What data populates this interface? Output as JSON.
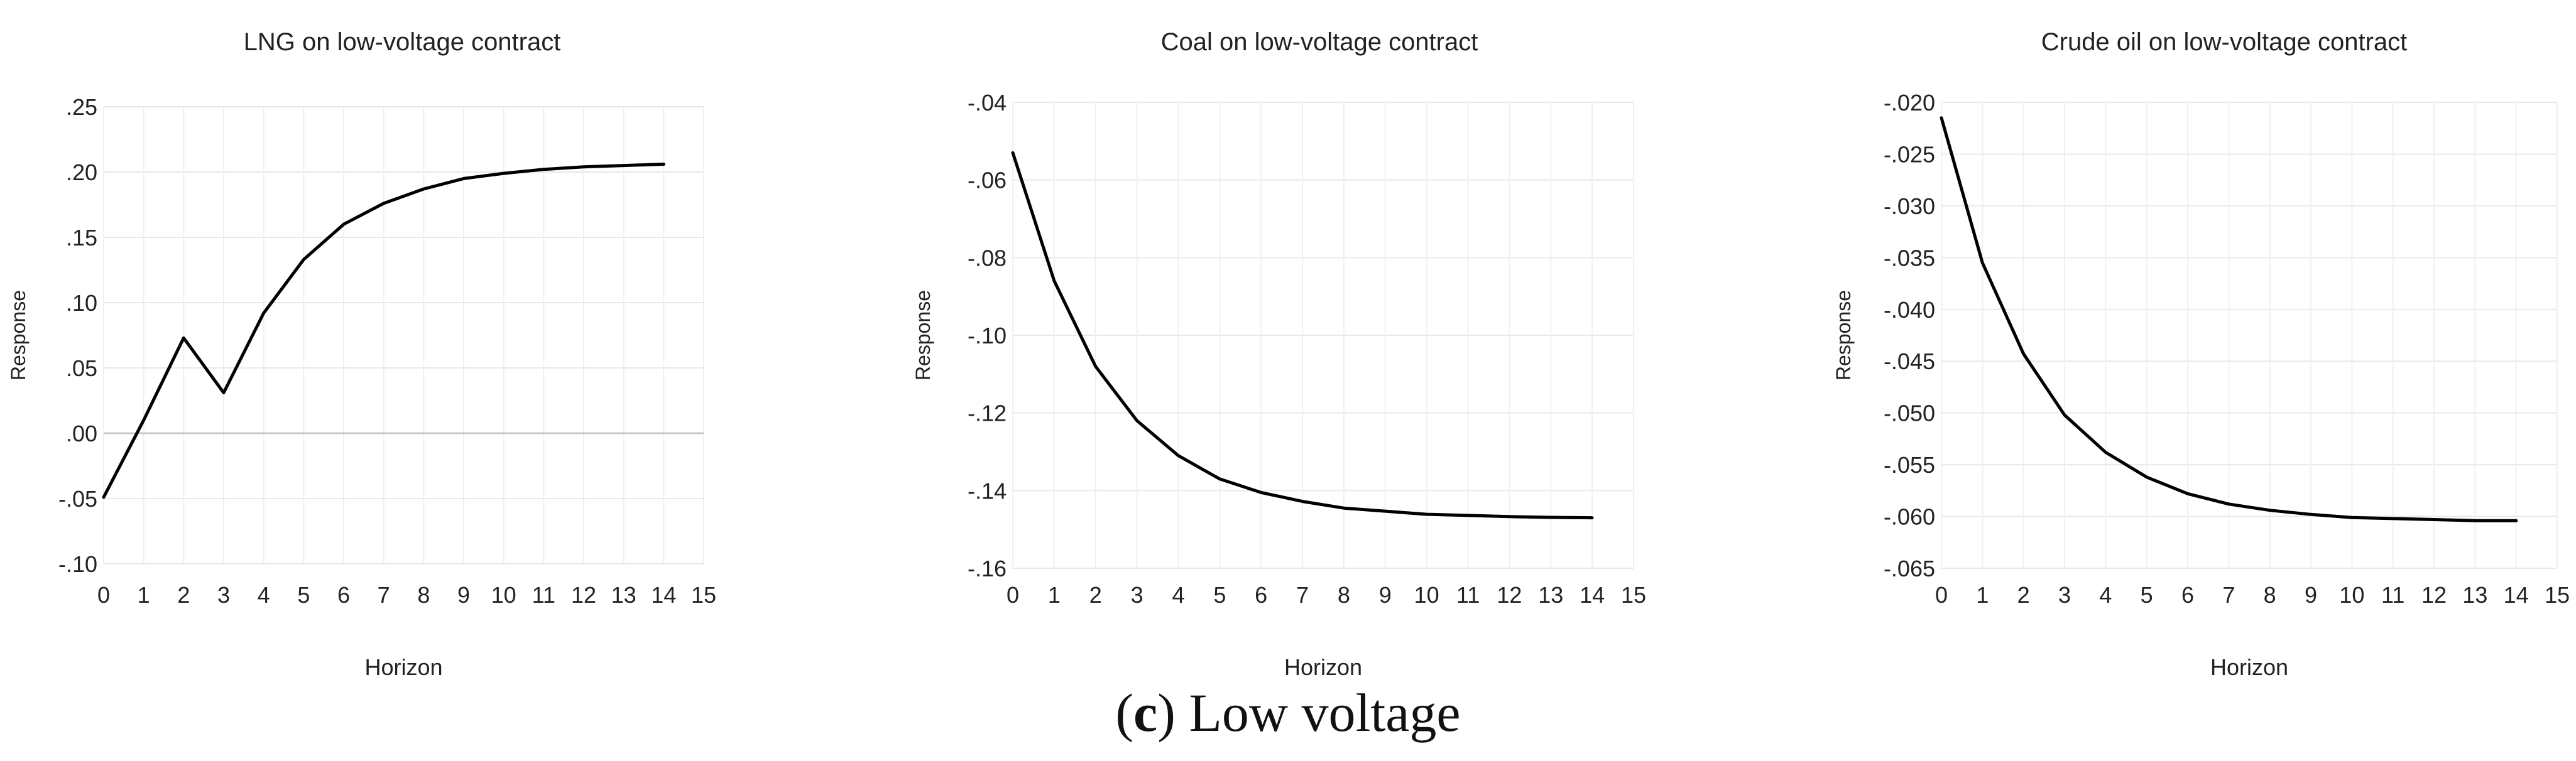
{
  "chart_data": [
    {
      "type": "line",
      "title": "LNG on low-voltage contract",
      "xlabel": "Horizon",
      "ylabel": "Response",
      "x": [
        0,
        1,
        2,
        3,
        4,
        5,
        6,
        7,
        8,
        9,
        10,
        11,
        12,
        13,
        14
      ],
      "series": [
        {
          "name": "LNG",
          "values": [
            -0.049,
            0.01,
            0.073,
            0.031,
            0.092,
            0.133,
            0.16,
            0.176,
            0.187,
            0.195,
            0.199,
            0.202,
            0.204,
            0.205,
            0.206
          ]
        }
      ],
      "xlim": [
        0,
        15
      ],
      "ylim": [
        -0.1,
        0.25
      ],
      "xticks": [
        0,
        1,
        2,
        3,
        4,
        5,
        6,
        7,
        8,
        9,
        10,
        11,
        12,
        13,
        14,
        15
      ],
      "yticks": [
        -0.1,
        -0.05,
        0.0,
        0.05,
        0.1,
        0.15,
        0.2,
        0.25
      ],
      "yticklabels": [
        "-.10",
        "-.05",
        ".00",
        ".05",
        ".10",
        ".15",
        ".20",
        ".25"
      ],
      "zero_line": true,
      "grid": true,
      "color": "#000000"
    },
    {
      "type": "line",
      "title": "Coal on low-voltage contract",
      "xlabel": "Horizon",
      "ylabel": "Response",
      "x": [
        0,
        1,
        2,
        3,
        4,
        5,
        6,
        7,
        8,
        9,
        10,
        11,
        12,
        13,
        14
      ],
      "series": [
        {
          "name": "Coal",
          "values": [
            -0.053,
            -0.086,
            -0.108,
            -0.122,
            -0.131,
            -0.137,
            -0.1405,
            -0.1428,
            -0.1445,
            -0.1453,
            -0.1461,
            -0.1464,
            -0.1467,
            -0.1469,
            -0.147
          ]
        }
      ],
      "xlim": [
        0,
        15
      ],
      "ylim": [
        -0.16,
        -0.04
      ],
      "xticks": [
        0,
        1,
        2,
        3,
        4,
        5,
        6,
        7,
        8,
        9,
        10,
        11,
        12,
        13,
        14,
        15
      ],
      "yticks": [
        -0.16,
        -0.14,
        -0.12,
        -0.1,
        -0.08,
        -0.06,
        -0.04
      ],
      "yticklabels": [
        "-.16",
        "-.14",
        "-.12",
        "-.10",
        "-.08",
        "-.06",
        "-.04"
      ],
      "zero_line": false,
      "grid": true,
      "color": "#000000"
    },
    {
      "type": "line",
      "title": "Crude oil on low-voltage contract",
      "xlabel": "Horizon",
      "ylabel": "Response",
      "x": [
        0,
        1,
        2,
        3,
        4,
        5,
        6,
        7,
        8,
        9,
        10,
        11,
        12,
        13,
        14
      ],
      "series": [
        {
          "name": "Crude oil",
          "values": [
            -0.0215,
            -0.0355,
            -0.0443,
            -0.0502,
            -0.0538,
            -0.0562,
            -0.0578,
            -0.0588,
            -0.0594,
            -0.0598,
            -0.0601,
            -0.0602,
            -0.0603,
            -0.0604,
            -0.0604
          ]
        }
      ],
      "xlim": [
        0,
        15
      ],
      "ylim": [
        -0.065,
        -0.02
      ],
      "xticks": [
        0,
        1,
        2,
        3,
        4,
        5,
        6,
        7,
        8,
        9,
        10,
        11,
        12,
        13,
        14,
        15
      ],
      "yticks": [
        -0.065,
        -0.06,
        -0.055,
        -0.05,
        -0.045,
        -0.04,
        -0.035,
        -0.03,
        -0.025,
        -0.02
      ],
      "yticklabels": [
        "-.065",
        "-.060",
        "-.055",
        "-.050",
        "-.045",
        "-.040",
        "-.035",
        "-.030",
        "-.025",
        "-.020"
      ],
      "zero_line": false,
      "grid": true,
      "color": "#000000"
    }
  ],
  "caption": {
    "open": "(",
    "letter": "c",
    "close": ")",
    "text": " Low voltage"
  }
}
